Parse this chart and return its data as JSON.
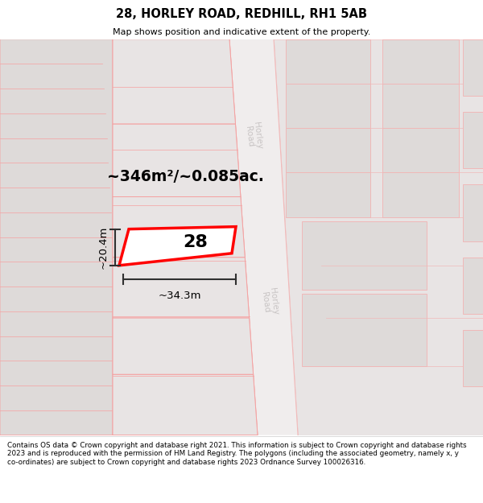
{
  "title": "28, HORLEY ROAD, REDHILL, RH1 5AB",
  "subtitle": "Map shows position and indicative extent of the property.",
  "footer": "Contains OS data © Crown copyright and database right 2021. This information is subject to Crown copyright and database rights 2023 and is reproduced with the permission of HM Land Registry. The polygons (including the associated geometry, namely x, y co-ordinates) are subject to Crown copyright and database rights 2023 Ordnance Survey 100026316.",
  "area_label": "~346m²/~0.085ac.",
  "number_label": "28",
  "width_label": "~34.3m",
  "height_label": "~20.4m",
  "bg_color": "#ffffff",
  "building_fill": "#e8e4e4",
  "building_fill2": "#dedad9",
  "highlight_color": "#ff0000",
  "road_label_color": "#c8c4c4",
  "road_fill": "#f0eded",
  "dim_color": "#303030",
  "pink_line": "#f5a0a0",
  "pink_line2": "#f0b8b8"
}
